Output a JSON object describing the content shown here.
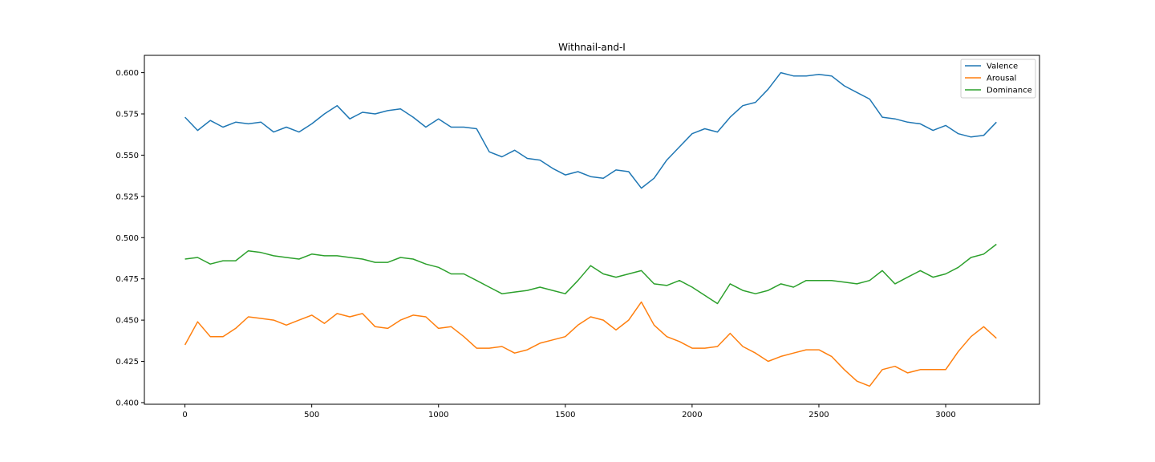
{
  "chart_data": {
    "type": "line",
    "title": "Withnail-and-I",
    "xlabel": "",
    "ylabel": "",
    "xlim": [
      -160,
      3370
    ],
    "ylim": [
      0.399,
      0.6105
    ],
    "xticks": [
      0,
      500,
      1000,
      1500,
      2000,
      2500,
      3000
    ],
    "xtick_labels": [
      "0",
      "500",
      "1000",
      "1500",
      "2000",
      "2500",
      "3000"
    ],
    "yticks": [
      0.4,
      0.425,
      0.45,
      0.475,
      0.5,
      0.525,
      0.55,
      0.575,
      0.6
    ],
    "ytick_labels": [
      "0.400",
      "0.425",
      "0.450",
      "0.475",
      "0.500",
      "0.525",
      "0.550",
      "0.575",
      "0.600"
    ],
    "grid": false,
    "legend_position": "upper right",
    "series": [
      {
        "name": "Valence",
        "color": "#1f77b4",
        "x": [
          0,
          50,
          100,
          150,
          200,
          250,
          300,
          350,
          400,
          450,
          500,
          550,
          600,
          650,
          700,
          750,
          800,
          850,
          900,
          950,
          1000,
          1050,
          1100,
          1150,
          1200,
          1250,
          1300,
          1350,
          1400,
          1450,
          1500,
          1550,
          1600,
          1650,
          1700,
          1750,
          1800,
          1850,
          1900,
          1950,
          2000,
          2050,
          2100,
          2150,
          2200,
          2250,
          2300,
          2350,
          2400,
          2450,
          2500,
          2550,
          2600,
          2650,
          2700,
          2750,
          2800,
          2850,
          2900,
          2950,
          3000,
          3050,
          3100,
          3150,
          3200
        ],
        "values": [
          0.573,
          0.565,
          0.571,
          0.567,
          0.57,
          0.569,
          0.57,
          0.564,
          0.567,
          0.564,
          0.569,
          0.575,
          0.58,
          0.572,
          0.576,
          0.575,
          0.577,
          0.578,
          0.573,
          0.567,
          0.572,
          0.567,
          0.567,
          0.566,
          0.552,
          0.549,
          0.553,
          0.548,
          0.547,
          0.542,
          0.538,
          0.54,
          0.537,
          0.536,
          0.541,
          0.54,
          0.53,
          0.536,
          0.547,
          0.555,
          0.563,
          0.566,
          0.564,
          0.573,
          0.58,
          0.582,
          0.59,
          0.6,
          0.598,
          0.598,
          0.599,
          0.598,
          0.592,
          0.588,
          0.584,
          0.573,
          0.572,
          0.57,
          0.569,
          0.565,
          0.568,
          0.563,
          0.561,
          0.562,
          0.57
        ]
      },
      {
        "name": "Arousal",
        "color": "#ff7f0e",
        "x": [
          0,
          50,
          100,
          150,
          200,
          250,
          300,
          350,
          400,
          450,
          500,
          550,
          600,
          650,
          700,
          750,
          800,
          850,
          900,
          950,
          1000,
          1050,
          1100,
          1150,
          1200,
          1250,
          1300,
          1350,
          1400,
          1450,
          1500,
          1550,
          1600,
          1650,
          1700,
          1750,
          1800,
          1850,
          1900,
          1950,
          2000,
          2050,
          2100,
          2150,
          2200,
          2250,
          2300,
          2350,
          2400,
          2450,
          2500,
          2550,
          2600,
          2650,
          2700,
          2750,
          2800,
          2850,
          2900,
          2950,
          3000,
          3050,
          3100,
          3150,
          3200
        ],
        "values": [
          0.435,
          0.449,
          0.44,
          0.44,
          0.445,
          0.452,
          0.451,
          0.45,
          0.447,
          0.45,
          0.453,
          0.448,
          0.454,
          0.452,
          0.454,
          0.446,
          0.445,
          0.45,
          0.453,
          0.452,
          0.445,
          0.446,
          0.44,
          0.433,
          0.433,
          0.434,
          0.43,
          0.432,
          0.436,
          0.438,
          0.44,
          0.447,
          0.452,
          0.45,
          0.444,
          0.45,
          0.461,
          0.447,
          0.44,
          0.437,
          0.433,
          0.433,
          0.434,
          0.442,
          0.434,
          0.43,
          0.425,
          0.428,
          0.43,
          0.432,
          0.432,
          0.428,
          0.42,
          0.413,
          0.41,
          0.42,
          0.422,
          0.418,
          0.42,
          0.42,
          0.42,
          0.431,
          0.44,
          0.446,
          0.439
        ]
      },
      {
        "name": "Dominance",
        "color": "#2ca02c",
        "x": [
          0,
          50,
          100,
          150,
          200,
          250,
          300,
          350,
          400,
          450,
          500,
          550,
          600,
          650,
          700,
          750,
          800,
          850,
          900,
          950,
          1000,
          1050,
          1100,
          1150,
          1200,
          1250,
          1300,
          1350,
          1400,
          1450,
          1500,
          1550,
          1600,
          1650,
          1700,
          1750,
          1800,
          1850,
          1900,
          1950,
          2000,
          2050,
          2100,
          2150,
          2200,
          2250,
          2300,
          2350,
          2400,
          2450,
          2500,
          2550,
          2600,
          2650,
          2700,
          2750,
          2800,
          2850,
          2900,
          2950,
          3000,
          3050,
          3100,
          3150,
          3200
        ],
        "values": [
          0.487,
          0.488,
          0.484,
          0.486,
          0.486,
          0.492,
          0.491,
          0.489,
          0.488,
          0.487,
          0.49,
          0.489,
          0.489,
          0.488,
          0.487,
          0.485,
          0.485,
          0.488,
          0.487,
          0.484,
          0.482,
          0.478,
          0.478,
          0.474,
          0.47,
          0.466,
          0.467,
          0.468,
          0.47,
          0.468,
          0.466,
          0.474,
          0.483,
          0.478,
          0.476,
          0.478,
          0.48,
          0.472,
          0.471,
          0.474,
          0.47,
          0.465,
          0.46,
          0.472,
          0.468,
          0.466,
          0.468,
          0.472,
          0.47,
          0.474,
          0.474,
          0.474,
          0.473,
          0.472,
          0.474,
          0.48,
          0.472,
          0.476,
          0.48,
          0.476,
          0.478,
          0.482,
          0.488,
          0.49,
          0.496
        ]
      }
    ]
  }
}
